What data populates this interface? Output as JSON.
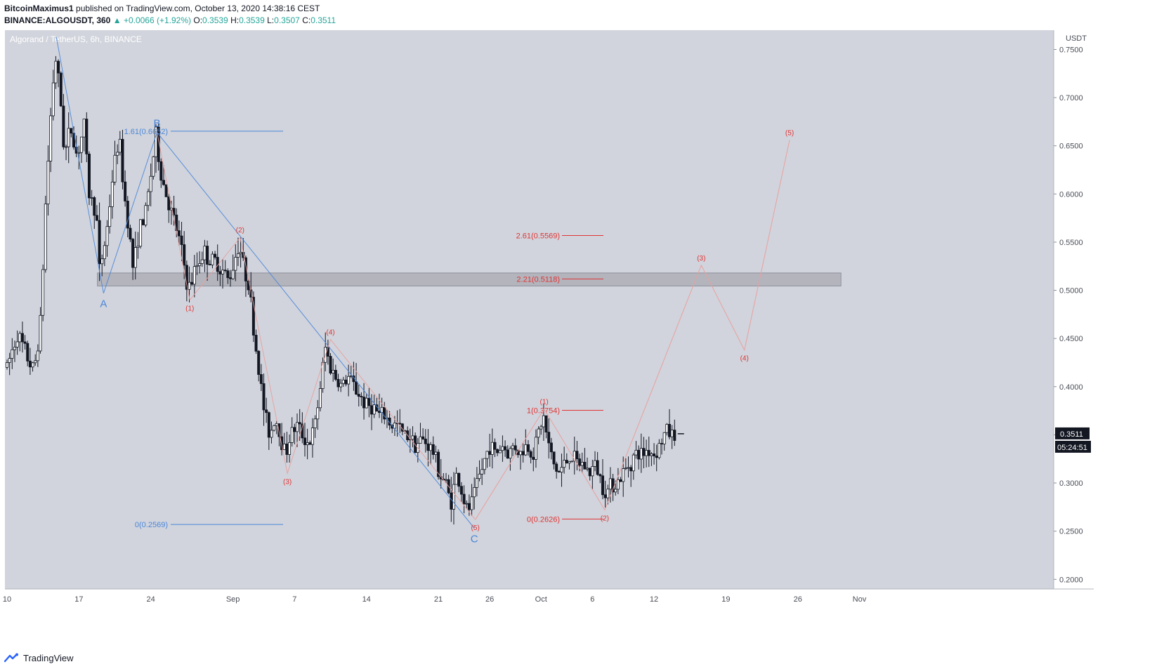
{
  "header": {
    "author": "BitcoinMaximus1",
    "published_text": "published on TradingView.com, October 13, 2020 14:38:16 CEST",
    "symbol_line": "BINANCE:ALGOUSDT, 360",
    "change_arrow": "▲",
    "change_text": "+0.0066 (+1.92%)",
    "o_label": "O:",
    "o_value": "0.3539",
    "h_label": "H:",
    "h_value": "0.3539",
    "l_label": "L:",
    "l_value": "0.3507",
    "c_label": "C:",
    "c_value": "0.3511"
  },
  "footer": {
    "brand": "TradingView",
    "logo_icon": "tradingview-logo-icon"
  },
  "colors": {
    "background": "#d1d4dc",
    "candle": "#131722",
    "blue_wave": "#4a86d9",
    "red_wave": "#e03535",
    "projection": "#e8a0a0",
    "resistance_box": "#a8aab1",
    "positive": "#26a69a"
  },
  "chart_data": {
    "type": "candlestick",
    "title": "Algorand / TetherUS, 6h, BINANCE",
    "currency_label": "USDT",
    "ylim": [
      0.19,
      0.77
    ],
    "y_ticks": [
      0.75,
      0.7,
      0.65,
      0.6,
      0.55,
      0.5,
      0.45,
      0.4,
      0.35,
      0.3,
      0.25,
      0.2
    ],
    "y_tick_labels": [
      "0.7500",
      "0.7000",
      "0.6500",
      "0.6000",
      "0.5500",
      "0.5000",
      "0.4500",
      "0.4000",
      "0.3500",
      "0.3000",
      "0.2500",
      "0.2000"
    ],
    "x_ticks": [
      {
        "day": 0,
        "label": "10"
      },
      {
        "day": 7,
        "label": "17"
      },
      {
        "day": 14,
        "label": "24"
      },
      {
        "day": 22,
        "label": "Sep"
      },
      {
        "day": 28,
        "label": "7"
      },
      {
        "day": 35,
        "label": "14"
      },
      {
        "day": 42,
        "label": "21"
      },
      {
        "day": 47,
        "label": "26"
      },
      {
        "day": 52,
        "label": "Oct"
      },
      {
        "day": 57,
        "label": "6"
      },
      {
        "day": 63,
        "label": "12"
      },
      {
        "day": 70,
        "label": "19"
      },
      {
        "day": 77,
        "label": "26"
      },
      {
        "day": 83,
        "label": "Nov"
      }
    ],
    "last_price_label": "0.3511",
    "last_price": 0.3511,
    "countdown_label": "05:24:51",
    "price_path": [
      [
        0,
        0.42
      ],
      [
        1,
        0.455
      ],
      [
        2,
        0.43
      ],
      [
        2.6,
        0.415
      ],
      [
        3.3,
        0.47
      ],
      [
        3.7,
        0.58
      ],
      [
        4.3,
        0.69
      ],
      [
        4.7,
        0.745
      ],
      [
        5.2,
        0.7
      ],
      [
        5.6,
        0.64
      ],
      [
        6.2,
        0.67
      ],
      [
        6.8,
        0.64
      ],
      [
        7.5,
        0.67
      ],
      [
        8,
        0.6
      ],
      [
        8.7,
        0.58
      ],
      [
        9,
        0.52
      ],
      [
        9.7,
        0.56
      ],
      [
        10.3,
        0.62
      ],
      [
        10.9,
        0.66
      ],
      [
        11.4,
        0.6
      ],
      [
        11.8,
        0.57
      ],
      [
        12.3,
        0.52
      ],
      [
        12.8,
        0.56
      ],
      [
        13.5,
        0.58
      ],
      [
        14,
        0.62
      ],
      [
        14.5,
        0.66
      ],
      [
        15,
        0.62
      ],
      [
        15.5,
        0.6
      ],
      [
        16,
        0.58
      ],
      [
        16.6,
        0.56
      ],
      [
        17.2,
        0.53
      ],
      [
        17.6,
        0.5
      ],
      [
        18,
        0.51
      ],
      [
        18.6,
        0.53
      ],
      [
        19.2,
        0.54
      ],
      [
        19.8,
        0.53
      ],
      [
        20.4,
        0.53
      ],
      [
        21,
        0.52
      ],
      [
        21.6,
        0.51
      ],
      [
        22.1,
        0.53
      ],
      [
        22.6,
        0.55
      ],
      [
        23.1,
        0.52
      ],
      [
        23.5,
        0.51
      ],
      [
        24,
        0.46
      ],
      [
        24.6,
        0.41
      ],
      [
        25.1,
        0.37
      ],
      [
        25.6,
        0.35
      ],
      [
        26.1,
        0.37
      ],
      [
        26.6,
        0.35
      ],
      [
        27.1,
        0.33
      ],
      [
        27.6,
        0.35
      ],
      [
        28.2,
        0.36
      ],
      [
        28.8,
        0.35
      ],
      [
        29.4,
        0.34
      ],
      [
        30,
        0.36
      ],
      [
        30.5,
        0.4
      ],
      [
        31,
        0.44
      ],
      [
        31.5,
        0.42
      ],
      [
        32,
        0.41
      ],
      [
        32.6,
        0.4
      ],
      [
        33.2,
        0.41
      ],
      [
        33.8,
        0.4
      ],
      [
        34.4,
        0.39
      ],
      [
        35,
        0.38
      ],
      [
        35.6,
        0.38
      ],
      [
        36.2,
        0.37
      ],
      [
        36.8,
        0.37
      ],
      [
        37.4,
        0.36
      ],
      [
        38,
        0.36
      ],
      [
        38.6,
        0.35
      ],
      [
        39.2,
        0.35
      ],
      [
        39.8,
        0.34
      ],
      [
        40.4,
        0.345
      ],
      [
        41,
        0.34
      ],
      [
        41.6,
        0.33
      ],
      [
        42.1,
        0.31
      ],
      [
        42.7,
        0.3
      ],
      [
        43.2,
        0.28
      ],
      [
        43.8,
        0.31
      ],
      [
        44.3,
        0.29
      ],
      [
        44.8,
        0.27
      ],
      [
        45.3,
        0.28
      ],
      [
        45.8,
        0.3
      ],
      [
        46.4,
        0.32
      ],
      [
        47,
        0.34
      ],
      [
        47.6,
        0.33
      ],
      [
        48.2,
        0.34
      ],
      [
        48.8,
        0.33
      ],
      [
        49.4,
        0.34
      ],
      [
        50,
        0.33
      ],
      [
        50.6,
        0.34
      ],
      [
        51.2,
        0.33
      ],
      [
        51.7,
        0.35
      ],
      [
        52.2,
        0.37
      ],
      [
        52.7,
        0.34
      ],
      [
        53.2,
        0.32
      ],
      [
        53.7,
        0.31
      ],
      [
        54.3,
        0.32
      ],
      [
        54.9,
        0.33
      ],
      [
        55.5,
        0.32
      ],
      [
        56.1,
        0.32
      ],
      [
        56.7,
        0.31
      ],
      [
        57.3,
        0.32
      ],
      [
        57.9,
        0.3
      ],
      [
        58.4,
        0.29
      ],
      [
        58.9,
        0.3
      ],
      [
        59.4,
        0.3
      ],
      [
        60,
        0.31
      ],
      [
        60.6,
        0.32
      ],
      [
        61.2,
        0.33
      ],
      [
        61.8,
        0.33
      ],
      [
        62.4,
        0.335
      ],
      [
        63,
        0.33
      ],
      [
        63.6,
        0.34
      ],
      [
        64.2,
        0.355
      ],
      [
        64.7,
        0.35
      ],
      [
        65.1,
        0.3511
      ]
    ],
    "resistance_zone": {
      "low": 0.5045,
      "high": 0.518,
      "day_start": 8.8,
      "day_end": 81.2
    },
    "fib_left": {
      "color": "blue",
      "levels": [
        {
          "label": "1.61(0.6652)",
          "value": 0.6652
        },
        {
          "label": "0(0.2569)",
          "value": 0.2569
        }
      ]
    },
    "fib_right": {
      "color": "red",
      "levels": [
        {
          "label": "2.61(0.5569)",
          "value": 0.5569
        },
        {
          "label": "2.21(0.5118)",
          "value": 0.5118
        },
        {
          "label": "1(0.3754)",
          "value": 0.3754
        },
        {
          "label": "0(0.2626)",
          "value": 0.2626
        }
      ]
    },
    "abc_wave": [
      {
        "label": "",
        "day": 4.8,
        "value": 0.7628
      },
      {
        "label": "A",
        "day": 9.4,
        "value": 0.497
      },
      {
        "label": "B",
        "day": 14.6,
        "value": 0.664
      },
      {
        "label": "C",
        "day": 45.5,
        "value": 0.253
      }
    ],
    "red_wave_1": [
      {
        "label": "",
        "day": 14.6,
        "value": 0.664
      },
      {
        "label": "(1)",
        "day": 17.8,
        "value": 0.49
      },
      {
        "label": "(2)",
        "day": 22.7,
        "value": 0.555
      },
      {
        "label": "(3)",
        "day": 27.3,
        "value": 0.31
      },
      {
        "label": "(4)",
        "day": 31.5,
        "value": 0.449
      },
      {
        "label": "(5)",
        "day": 45.6,
        "value": 0.262
      }
    ],
    "red_wave_2": [
      {
        "label": "",
        "day": 45.6,
        "value": 0.262
      },
      {
        "label": "(1)",
        "day": 52.3,
        "value": 0.377
      },
      {
        "label": "(2)",
        "day": 58.2,
        "value": 0.272
      },
      {
        "label": "(3)",
        "day": 67.6,
        "value": 0.526
      },
      {
        "label": "(4)",
        "day": 71.8,
        "value": 0.438
      },
      {
        "label": "(5)",
        "day": 76.2,
        "value": 0.656
      }
    ]
  }
}
